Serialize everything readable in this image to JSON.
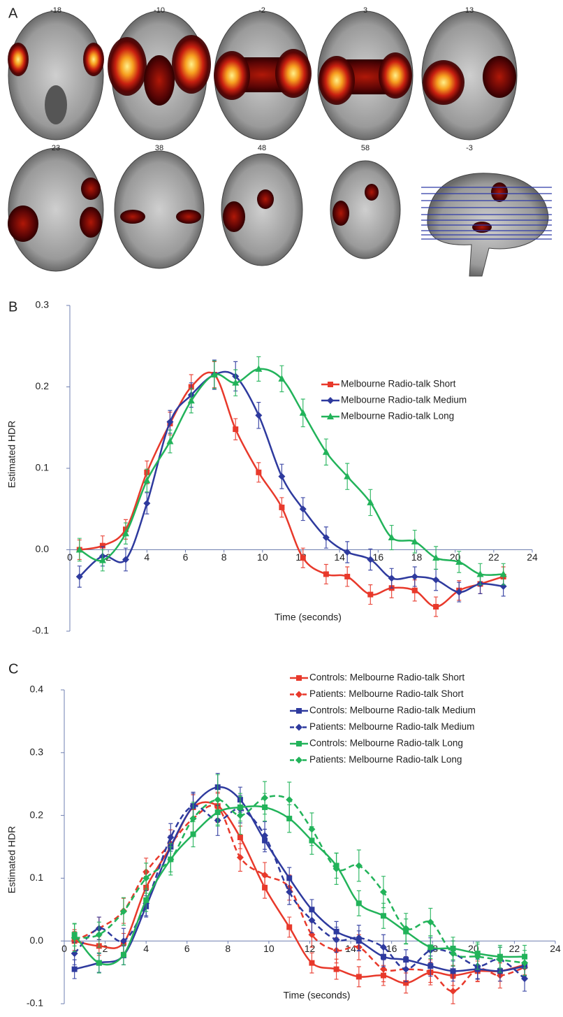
{
  "panel_labels": [
    "A",
    "B",
    "C"
  ],
  "slices": [
    -18,
    -10,
    -2,
    3,
    13,
    23,
    38,
    48,
    58,
    -3
  ],
  "chart_data": [
    {
      "type": "line",
      "x_label": "Time (seconds)",
      "y_label": "Estimated HDR",
      "legend": "upper right",
      "xlim": [
        0,
        24
      ],
      "xticks": [
        0,
        2,
        4,
        6,
        8,
        10,
        12,
        14,
        16,
        18,
        20,
        22,
        24
      ],
      "ylim": [
        -0.1,
        0.3
      ],
      "yticks": [
        -0.1,
        {
          "value": 0,
          "label": "0.0"
        },
        0.1,
        0.2,
        0.3
      ],
      "x": [
        0.5,
        1.7,
        2.9,
        4.0,
        5.2,
        6.3,
        7.5,
        8.6,
        9.8,
        11.0,
        12.1,
        13.3,
        14.4,
        15.6,
        16.7,
        17.9,
        19.0,
        20.2,
        21.3,
        22.5
      ],
      "series": [
        {
          "name": "Melbourne Radio-talk Short",
          "color": "#e8392b",
          "marker": "square",
          "dashed": false,
          "values": [
            0,
            0.005,
            0.025,
            0.095,
            0.155,
            0.2,
            0.215,
            0.148,
            0.095,
            0.052,
            -0.01,
            -0.03,
            -0.033,
            -0.055,
            -0.047,
            -0.05,
            -0.07,
            -0.05,
            -0.042,
            -0.033
          ],
          "errors": [
            0.012,
            0.012,
            0.012,
            0.014,
            0.014,
            0.015,
            0.016,
            0.013,
            0.012,
            0.012,
            0.012,
            0.012,
            0.012,
            0.012,
            0.012,
            0.013,
            0.012,
            0.012,
            0.012,
            0.012
          ]
        },
        {
          "name": "Melbourne Radio-talk Medium",
          "color": "#2e3a9e",
          "marker": "diamond",
          "dashed": false,
          "values": [
            -0.033,
            -0.008,
            -0.012,
            0.057,
            0.157,
            0.19,
            0.215,
            0.213,
            0.165,
            0.09,
            0.05,
            0.015,
            -0.003,
            -0.012,
            -0.035,
            -0.033,
            -0.037,
            -0.052,
            -0.042,
            -0.045
          ],
          "errors": [
            0.013,
            0.012,
            0.014,
            0.013,
            0.014,
            0.015,
            0.018,
            0.018,
            0.016,
            0.015,
            0.014,
            0.013,
            0.013,
            0.013,
            0.012,
            0.012,
            0.013,
            0.012,
            0.012,
            0.012
          ]
        },
        {
          "name": "Melbourne Radio-talk Long",
          "color": "#22b35a",
          "marker": "triangle",
          "dashed": false,
          "values": [
            0,
            -0.013,
            0.02,
            0.085,
            0.133,
            0.183,
            0.215,
            0.205,
            0.222,
            0.21,
            0.168,
            0.12,
            0.09,
            0.058,
            0.015,
            0.01,
            -0.01,
            -0.015,
            -0.03,
            -0.03
          ],
          "errors": [
            0.014,
            0.013,
            0.013,
            0.014,
            0.014,
            0.015,
            0.017,
            0.016,
            0.015,
            0.016,
            0.017,
            0.016,
            0.016,
            0.016,
            0.015,
            0.014,
            0.014,
            0.013,
            0.013,
            0.013
          ]
        }
      ]
    },
    {
      "type": "line",
      "x_label": "Time (seconds)",
      "y_label": "Estimated HDR",
      "legend": "upper right",
      "xlim": [
        0,
        24
      ],
      "xticks": [
        0,
        2,
        4,
        6,
        8,
        10,
        12,
        14,
        16,
        18,
        20,
        22,
        24
      ],
      "ylim": [
        -0.1,
        0.4
      ],
      "yticks": [
        -0.1,
        {
          "value": 0,
          "label": "0.0"
        },
        0.1,
        0.2,
        0.3,
        0.4
      ],
      "x": [
        0.5,
        1.7,
        2.9,
        4.0,
        5.2,
        6.3,
        7.5,
        8.6,
        9.8,
        11.0,
        12.1,
        13.3,
        14.4,
        15.6,
        16.7,
        17.9,
        19.0,
        20.2,
        21.3,
        22.5
      ],
      "series": [
        {
          "name": "Controls: Melbourne Radio-talk Short",
          "color": "#e8392b",
          "marker": "square",
          "dashed": false,
          "values": [
            0,
            -0.008,
            -0.003,
            0.085,
            0.15,
            0.213,
            0.215,
            0.165,
            0.085,
            0.022,
            -0.035,
            -0.045,
            -0.057,
            -0.055,
            -0.067,
            -0.05,
            -0.055,
            -0.048,
            -0.048,
            -0.038
          ],
          "errors": [
            0.015,
            0.015,
            0.015,
            0.018,
            0.018,
            0.02,
            0.02,
            0.018,
            0.017,
            0.016,
            0.016,
            0.016,
            0.016,
            0.016,
            0.016,
            0.016,
            0.016,
            0.016,
            0.016,
            0.016
          ]
        },
        {
          "name": "Patients: Melbourne Radio-talk Short",
          "color": "#e8392b",
          "marker": "diamond",
          "dashed": true,
          "values": [
            0,
            0.02,
            0.048,
            0.11,
            0.155,
            0.195,
            0.213,
            0.133,
            0.105,
            0.085,
            0.01,
            -0.015,
            -0.01,
            -0.045,
            -0.045,
            -0.05,
            -0.08,
            -0.045,
            -0.055,
            -0.042
          ],
          "errors": [
            0.018,
            0.018,
            0.02,
            0.022,
            0.022,
            0.022,
            0.024,
            0.022,
            0.02,
            0.02,
            0.02,
            0.02,
            0.02,
            0.02,
            0.02,
            0.02,
            0.02,
            0.02,
            0.02,
            0.02
          ]
        },
        {
          "name": "Controls: Melbourne Radio-talk Medium",
          "color": "#2e3a9e",
          "marker": "square",
          "dashed": false,
          "values": [
            -0.045,
            -0.035,
            -0.023,
            0.055,
            0.15,
            0.215,
            0.245,
            0.225,
            0.16,
            0.1,
            0.05,
            0.015,
            0.0,
            -0.025,
            -0.03,
            -0.04,
            -0.048,
            -0.045,
            -0.048,
            -0.04
          ],
          "errors": [
            0.015,
            0.015,
            0.015,
            0.017,
            0.018,
            0.02,
            0.022,
            0.02,
            0.018,
            0.017,
            0.016,
            0.016,
            0.016,
            0.016,
            0.016,
            0.016,
            0.016,
            0.016,
            0.016,
            0.016
          ]
        },
        {
          "name": "Patients: Melbourne Radio-talk Medium",
          "color": "#2e3a9e",
          "marker": "diamond",
          "dashed": true,
          "values": [
            -0.02,
            0.02,
            0.0,
            0.06,
            0.165,
            0.215,
            0.192,
            0.21,
            0.168,
            0.078,
            0.033,
            0.002,
            0.005,
            -0.01,
            -0.045,
            -0.015,
            -0.02,
            -0.04,
            -0.03,
            -0.06
          ],
          "errors": [
            0.018,
            0.018,
            0.02,
            0.02,
            0.022,
            0.022,
            0.024,
            0.022,
            0.022,
            0.02,
            0.02,
            0.02,
            0.02,
            0.02,
            0.02,
            0.02,
            0.02,
            0.02,
            0.02,
            0.02
          ]
        },
        {
          "name": "Controls: Melbourne Radio-talk Long",
          "color": "#22b35a",
          "marker": "square",
          "dashed": false,
          "values": [
            0.01,
            -0.035,
            -0.022,
            0.065,
            0.13,
            0.17,
            0.205,
            0.213,
            0.213,
            0.195,
            0.16,
            0.12,
            0.06,
            0.04,
            0.015,
            -0.01,
            -0.012,
            -0.02,
            -0.025,
            -0.025
          ],
          "errors": [
            0.018,
            0.016,
            0.016,
            0.018,
            0.02,
            0.02,
            0.022,
            0.022,
            0.022,
            0.022,
            0.022,
            0.02,
            0.02,
            0.02,
            0.02,
            0.018,
            0.018,
            0.018,
            0.018,
            0.018
          ]
        },
        {
          "name": "Patients: Melbourne Radio-talk Long",
          "color": "#22b35a",
          "marker": "diamond",
          "dashed": true,
          "values": [
            0.005,
            0.01,
            0.047,
            0.1,
            0.13,
            0.195,
            0.225,
            0.2,
            0.228,
            0.225,
            0.178,
            0.115,
            0.12,
            0.078,
            0.02,
            0.03,
            -0.02,
            -0.025,
            -0.03,
            -0.035
          ],
          "errors": [
            0.022,
            0.02,
            0.022,
            0.024,
            0.025,
            0.026,
            0.04,
            0.03,
            0.026,
            0.028,
            0.026,
            0.025,
            0.025,
            0.025,
            0.024,
            0.022,
            0.02,
            0.02,
            0.02,
            0.02
          ]
        }
      ]
    }
  ]
}
